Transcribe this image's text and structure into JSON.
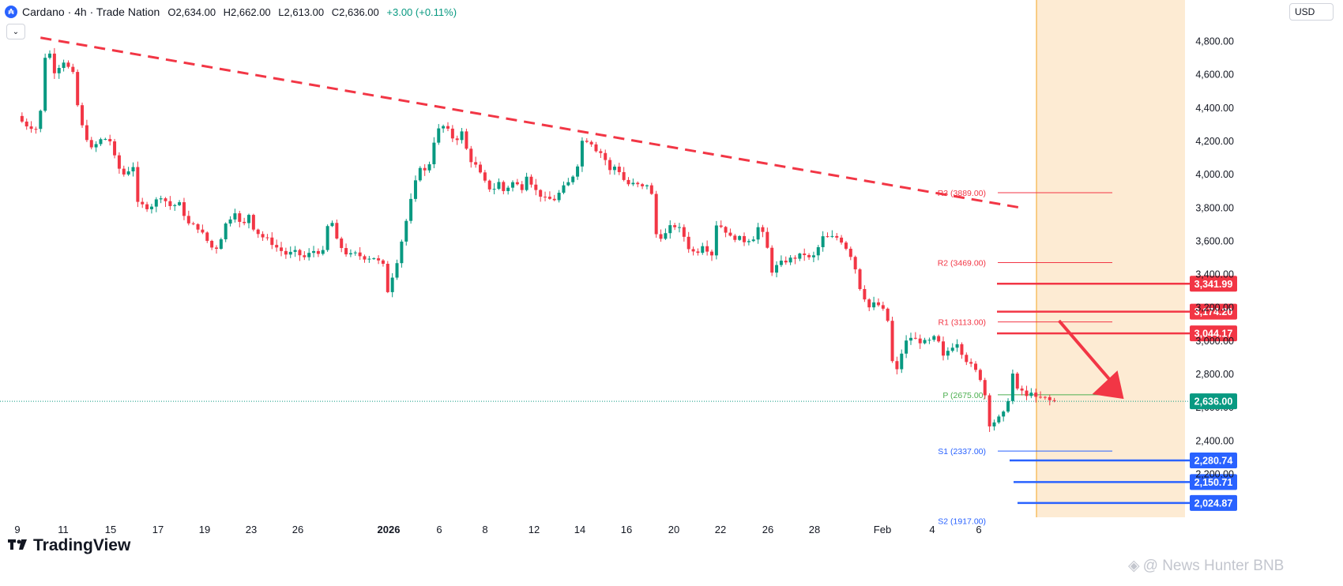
{
  "header": {
    "logo_glyph": "₳",
    "symbol": "Cardano · 4h · Trade Nation",
    "open": "O2,634.00",
    "high": "H2,662.00",
    "low": "L2,613.00",
    "close": "C2,636.00",
    "change": "+3.00 (+0.11%)",
    "collapse_glyph": "⌄"
  },
  "currency": "USD",
  "brand": "TradingView",
  "watermark": "@ News Hunter BNB",
  "colors": {
    "up": "#089981",
    "down": "#f23645",
    "trendline": "#f23645",
    "resistance": "#f23645",
    "support": "#2962ff",
    "pivot": "#4caf50",
    "forecast_zone": "#fdebd3",
    "forecast_border": "#f5b041",
    "arrow": "#f23645"
  },
  "chart_data": {
    "type": "candlestick",
    "title": "Cardano · 4h · Trade Nation",
    "ylim": [
      1925,
      5015
    ],
    "y_axis_ticks": [
      "4,800.00",
      "4,600.00",
      "4,400.00",
      "4,200.00",
      "4,000.00",
      "3,800.00",
      "3,600.00",
      "3,400.00",
      "3,200.00",
      "3,000.00",
      "2,800.00",
      "2,600.00",
      "2,400.00",
      "2,200.00"
    ],
    "x_axis_labels": [
      "9",
      "11",
      "15",
      "17",
      "19",
      "23",
      "26",
      "2026",
      "6",
      "8",
      "12",
      "14",
      "16",
      "20",
      "22",
      "26",
      "28",
      "Feb",
      "4",
      "6"
    ],
    "price_path": [
      [
        0,
        4350
      ],
      [
        0.3,
        4300
      ],
      [
        0.9,
        4270
      ],
      [
        1.05,
        4430
      ],
      [
        1.25,
        4800
      ],
      [
        1.6,
        4620
      ],
      [
        2.0,
        4680
      ],
      [
        2.4,
        4600
      ],
      [
        2.7,
        4320
      ],
      [
        3.2,
        4150
      ],
      [
        3.7,
        4220
      ],
      [
        4.0,
        4200
      ],
      [
        4.3,
        4050
      ],
      [
        4.6,
        4000
      ],
      [
        5.0,
        4050
      ],
      [
        5.2,
        3820
      ],
      [
        5.7,
        3800
      ],
      [
        6.2,
        3870
      ],
      [
        6.6,
        3810
      ],
      [
        7.0,
        3820
      ],
      [
        7.4,
        3700
      ],
      [
        7.8,
        3680
      ],
      [
        8.2,
        3600
      ],
      [
        8.5,
        3540
      ],
      [
        8.7,
        3580
      ],
      [
        9.0,
        3700
      ],
      [
        9.4,
        3780
      ],
      [
        9.7,
        3670
      ],
      [
        10.0,
        3760
      ],
      [
        10.2,
        3680
      ],
      [
        10.5,
        3630
      ],
      [
        10.9,
        3600
      ],
      [
        11.2,
        3560
      ],
      [
        11.6,
        3520
      ],
      [
        12.0,
        3530
      ],
      [
        12.4,
        3500
      ],
      [
        12.8,
        3540
      ],
      [
        13.2,
        3530
      ],
      [
        13.5,
        3760
      ],
      [
        13.8,
        3600
      ],
      [
        14.0,
        3560
      ],
      [
        14.3,
        3510
      ],
      [
        14.6,
        3520
      ],
      [
        15.0,
        3500
      ],
      [
        15.4,
        3500
      ],
      [
        15.8,
        3450
      ],
      [
        16.0,
        3300
      ],
      [
        16.4,
        3480
      ],
      [
        16.8,
        3720
      ],
      [
        17.1,
        3900
      ],
      [
        17.4,
        4050
      ],
      [
        17.7,
        4000
      ],
      [
        18.0,
        4200
      ],
      [
        18.3,
        4300
      ],
      [
        18.6,
        4260
      ],
      [
        18.9,
        4200
      ],
      [
        19.2,
        4250
      ],
      [
        19.5,
        4100
      ],
      [
        19.8,
        4050
      ],
      [
        20.2,
        3950
      ],
      [
        20.5,
        3900
      ],
      [
        20.8,
        3950
      ],
      [
        21.0,
        3900
      ],
      [
        21.4,
        3950
      ],
      [
        21.8,
        3920
      ],
      [
        22.0,
        4000
      ],
      [
        22.4,
        3900
      ],
      [
        22.8,
        3850
      ],
      [
        23.2,
        3850
      ],
      [
        23.6,
        3920
      ],
      [
        23.9,
        3960
      ],
      [
        24.2,
        4060
      ],
      [
        24.4,
        4200
      ],
      [
        24.7,
        4210
      ],
      [
        25.0,
        4150
      ],
      [
        25.3,
        4120
      ],
      [
        25.6,
        4020
      ],
      [
        25.9,
        4060
      ],
      [
        26.1,
        3980
      ],
      [
        26.4,
        3940
      ],
      [
        26.7,
        3940
      ],
      [
        27.0,
        3920
      ],
      [
        27.3,
        3950
      ],
      [
        27.5,
        3800
      ],
      [
        27.6,
        3640
      ],
      [
        27.9,
        3620
      ],
      [
        28.3,
        3700
      ],
      [
        28.7,
        3660
      ],
      [
        29.0,
        3560
      ],
      [
        29.3,
        3520
      ],
      [
        29.6,
        3580
      ],
      [
        30.0,
        3520
      ],
      [
        30.2,
        3700
      ],
      [
        30.5,
        3680
      ],
      [
        30.8,
        3620
      ],
      [
        31.1,
        3620
      ],
      [
        31.4,
        3600
      ],
      [
        31.8,
        3620
      ],
      [
        32.0,
        3680
      ],
      [
        32.3,
        3620
      ],
      [
        32.6,
        3420
      ],
      [
        32.9,
        3460
      ],
      [
        33.2,
        3480
      ],
      [
        33.6,
        3500
      ],
      [
        34.0,
        3520
      ],
      [
        34.3,
        3480
      ],
      [
        34.6,
        3560
      ],
      [
        34.8,
        3620
      ],
      [
        35.1,
        3620
      ],
      [
        35.5,
        3620
      ],
      [
        35.8,
        3560
      ],
      [
        36.1,
        3490
      ],
      [
        36.4,
        3320
      ],
      [
        36.8,
        3200
      ],
      [
        37.1,
        3230
      ],
      [
        37.4,
        3180
      ],
      [
        37.6,
        3120
      ],
      [
        37.7,
        2900
      ],
      [
        38.0,
        2820
      ],
      [
        38.3,
        2980
      ],
      [
        38.6,
        3020
      ],
      [
        38.9,
        3000
      ],
      [
        39.2,
        2990
      ],
      [
        39.5,
        3000
      ],
      [
        39.7,
        3030
      ],
      [
        40.0,
        2900
      ],
      [
        40.3,
        2960
      ],
      [
        40.6,
        2990
      ],
      [
        40.9,
        2900
      ],
      [
        41.2,
        2850
      ],
      [
        41.5,
        2800
      ],
      [
        41.7,
        2750
      ],
      [
        41.9,
        2600
      ],
      [
        42.0,
        2500
      ],
      [
        42.3,
        2520
      ],
      [
        42.6,
        2560
      ],
      [
        42.8,
        2650
      ],
      [
        43.0,
        2800
      ],
      [
        43.2,
        2700
      ],
      [
        43.4,
        2700
      ],
      [
        43.6,
        2660
      ],
      [
        43.8,
        2700
      ],
      [
        44.0,
        2650
      ],
      [
        44.3,
        2660
      ],
      [
        44.6,
        2640
      ],
      [
        44.9,
        2636
      ]
    ],
    "trendline": {
      "points": [
        [
          1,
          4820
        ],
        [
          43.3,
          3800
        ]
      ],
      "style": "dashed"
    },
    "pivot_levels": [
      {
        "label": "R3 (3889.00)",
        "value": 3889
      },
      {
        "label": "R2 (3469.00)",
        "value": 3469
      },
      {
        "label": "R1 (3113.00)",
        "value": 3113
      },
      {
        "label": "P (2675.00)",
        "value": 2675
      },
      {
        "label": "S1 (2337.00)",
        "value": 2337
      },
      {
        "label": "S2 (1917.00)",
        "value": 1917
      }
    ],
    "resistance_levels": [
      {
        "label": "3,341.99",
        "value": 3341.99
      },
      {
        "label": "3,174.20",
        "value": 3174.2
      },
      {
        "label": "3,044.17",
        "value": 3044.17
      }
    ],
    "support_levels": [
      {
        "label": "2,280.74",
        "value": 2280.74
      },
      {
        "label": "2,150.71",
        "value": 2150.71
      },
      {
        "label": "2,024.87",
        "value": 2024.87
      }
    ],
    "current_price": {
      "label": "2,636.00",
      "value": 2636.0
    },
    "forecast_arrow": {
      "from": [
        45.0,
        3120
      ],
      "to": [
        47.8,
        2650
      ]
    }
  }
}
